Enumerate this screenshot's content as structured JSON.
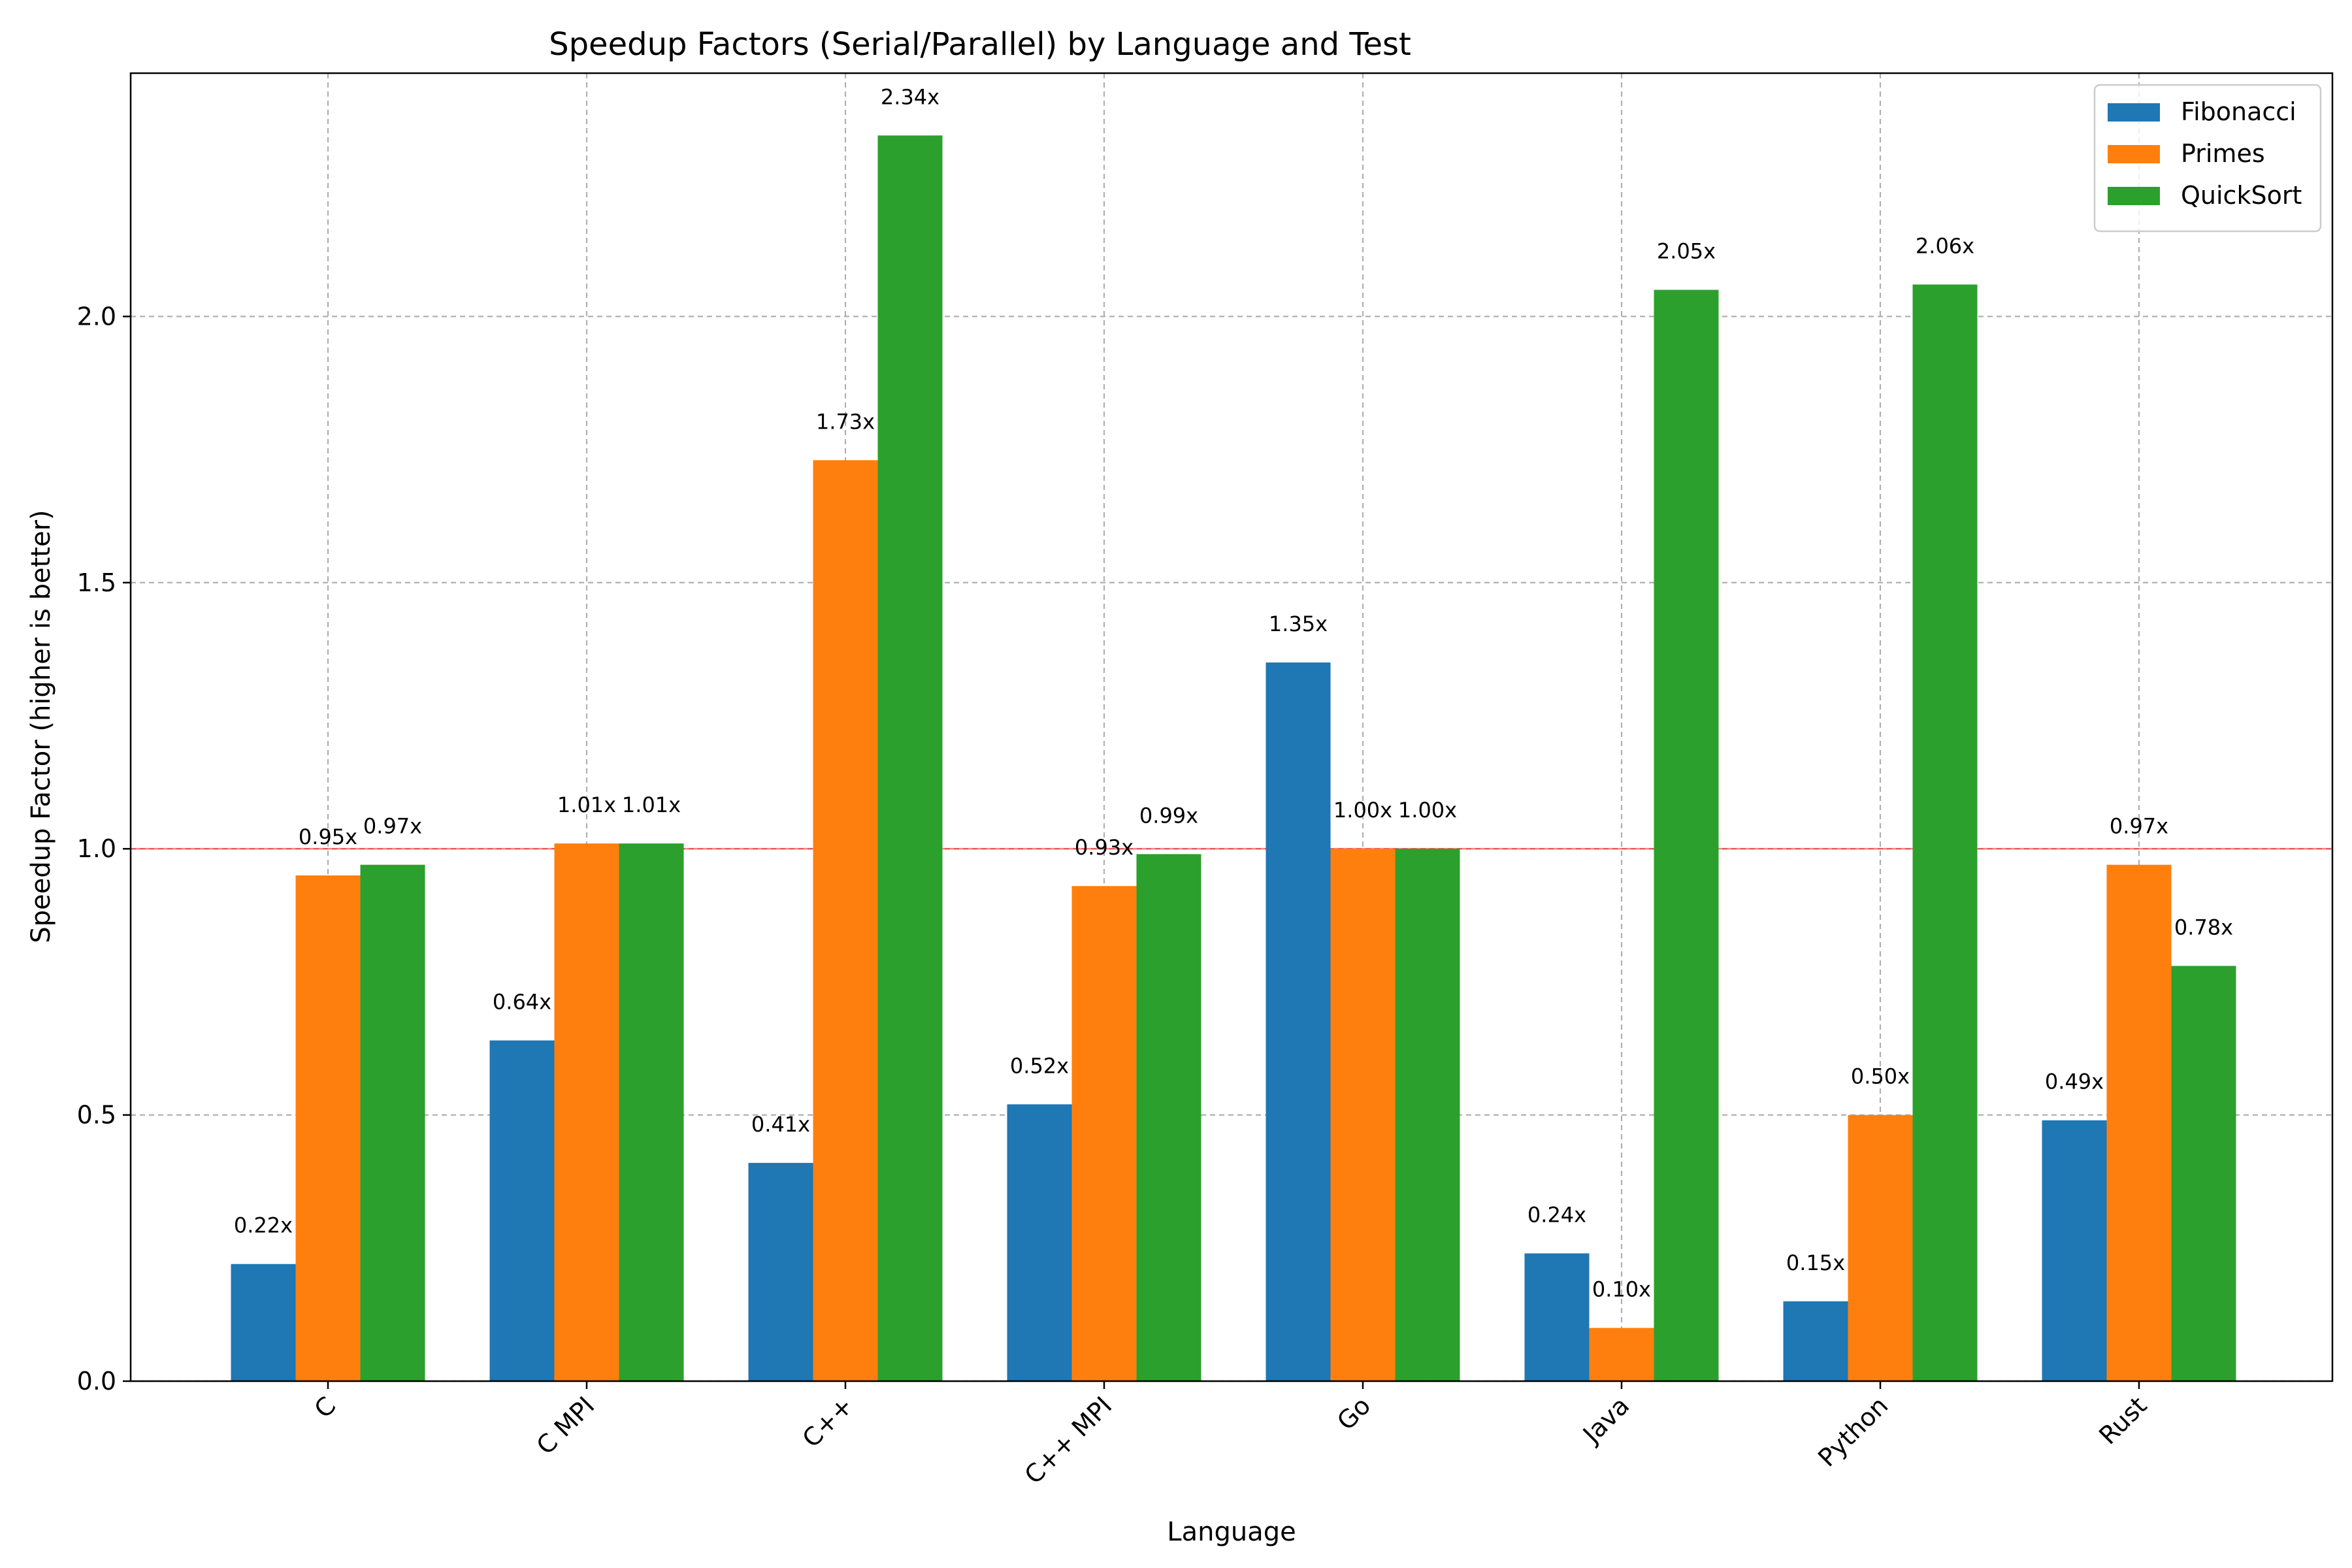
{
  "chart_data": {
    "type": "bar",
    "title": "Speedup Factors (Serial/Parallel) by Language and Test",
    "xlabel": "Language",
    "ylabel": "Speedup Factor (higher is better)",
    "categories": [
      "C",
      "C MPI",
      "C++",
      "C++ MPI",
      "Go",
      "Java",
      "Python",
      "Rust"
    ],
    "series": [
      {
        "name": "Fibonacci",
        "color": "#1f77b4",
        "values": [
          0.22,
          0.64,
          0.41,
          0.52,
          1.35,
          0.24,
          0.15,
          0.49
        ],
        "labels": [
          "0.22x",
          "0.64x",
          "0.41x",
          "0.52x",
          "1.35x",
          "0.24x",
          "0.15x",
          "0.49x"
        ]
      },
      {
        "name": "Primes",
        "color": "#ff7f0e",
        "values": [
          0.95,
          1.01,
          1.73,
          0.93,
          1.0,
          0.1,
          0.5,
          0.97
        ],
        "labels": [
          "0.95x",
          "1.01x",
          "1.73x",
          "0.93x",
          "1.00x",
          "0.10x",
          "0.50x",
          "0.97x"
        ]
      },
      {
        "name": "QuickSort",
        "color": "#2ca02c",
        "values": [
          0.97,
          1.01,
          2.34,
          0.99,
          1.0,
          2.05,
          2.06,
          0.78
        ],
        "labels": [
          "0.97x",
          "1.01x",
          "2.34x",
          "0.99x",
          "1.00x",
          "2.05x",
          "2.06x",
          "0.78x"
        ]
      }
    ],
    "yticks": [
      0.0,
      0.5,
      1.0,
      1.5,
      2.0
    ],
    "ytick_labels": [
      "0.0",
      "0.5",
      "1.0",
      "1.5",
      "2.0"
    ],
    "ylim": [
      0,
      2.457
    ],
    "reference_line": {
      "value": 1.0,
      "color": "#ff0000"
    },
    "grid": true,
    "legend_position": "top-right",
    "xtick_rotation_deg": -45
  }
}
